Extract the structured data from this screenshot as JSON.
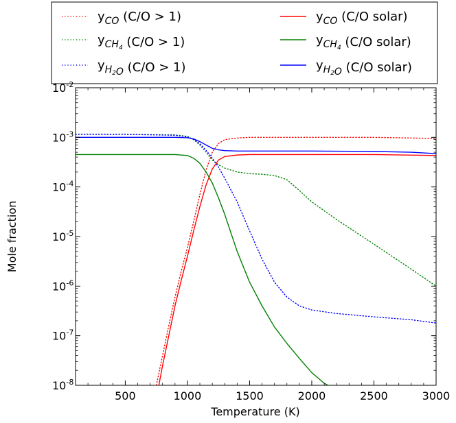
{
  "chart_data": {
    "type": "line",
    "xlabel": "Temperature (K)",
    "ylabel": "Mole fraction",
    "xlim": [
      100,
      3000
    ],
    "ylim": [
      1e-08,
      0.01
    ],
    "yscale": "log",
    "xticks": [
      500,
      1000,
      1500,
      2000,
      2500,
      3000
    ],
    "xtick_labels": [
      "500",
      "1000",
      "1500",
      "2000",
      "2500",
      "3000"
    ],
    "yticks": [
      {
        "value": 1e-08,
        "base": "10",
        "exp": "-8"
      },
      {
        "value": 1e-07,
        "base": "10",
        "exp": "-7"
      },
      {
        "value": 1e-06,
        "base": "10",
        "exp": "-6"
      },
      {
        "value": 1e-05,
        "base": "10",
        "exp": "-5"
      },
      {
        "value": 0.0001,
        "base": "10",
        "exp": "-4"
      },
      {
        "value": 0.001,
        "base": "10",
        "exp": "-3"
      },
      {
        "value": 0.01,
        "base": "10",
        "exp": "-2"
      }
    ],
    "legend_position": "top",
    "legend_symbol": "y",
    "series": [
      {
        "name": "yCO (C/O > 1)",
        "species": "CO",
        "case": "(C/O > 1)",
        "color": "#ff0000",
        "style": "dotted",
        "x": [
          750,
          800,
          850,
          900,
          950,
          1000,
          1050,
          1100,
          1150,
          1200,
          1250,
          1300,
          1400,
          1500,
          1700,
          2000,
          2500,
          3000
        ],
        "y": [
          1e-08,
          4e-08,
          1.6e-07,
          6e-07,
          2e-06,
          6e-06,
          2e-05,
          7e-05,
          0.00022,
          0.0005,
          0.00075,
          0.0009,
          0.00097,
          0.001,
          0.001,
          0.001,
          0.001,
          0.00095
        ]
      },
      {
        "name": "yCH4 (C/O > 1)",
        "species": "CH4",
        "case": "(C/O > 1)",
        "color": "#008000",
        "style": "dotted",
        "x": [
          100,
          500,
          900,
          1000,
          1050,
          1100,
          1150,
          1200,
          1250,
          1300,
          1400,
          1500,
          1600,
          1700,
          1800,
          1900,
          2000,
          2200,
          2500,
          2800,
          3000
        ],
        "y": [
          0.00115,
          0.00115,
          0.00112,
          0.00105,
          0.0009,
          0.0007,
          0.0005,
          0.00035,
          0.00028,
          0.00024,
          0.0002,
          0.000185,
          0.00018,
          0.00017,
          0.00014,
          8.5e-05,
          5e-05,
          2.2e-05,
          7e-06,
          2.2e-06,
          1e-06
        ]
      },
      {
        "name": "yH2O (C/O > 1)",
        "species": "H2O",
        "case": "(C/O > 1)",
        "color": "#0000ff",
        "style": "dotted",
        "x": [
          100,
          500,
          900,
          1000,
          1050,
          1100,
          1150,
          1200,
          1250,
          1300,
          1400,
          1500,
          1600,
          1700,
          1800,
          1900,
          2000,
          2200,
          2500,
          2800,
          3000
        ],
        "y": [
          0.00115,
          0.00115,
          0.0011,
          0.00102,
          0.0009,
          0.00075,
          0.00055,
          0.00038,
          0.00025,
          0.00015,
          5e-05,
          1.3e-05,
          3.5e-06,
          1.2e-06,
          6e-07,
          4e-07,
          3.3e-07,
          2.8e-07,
          2.4e-07,
          2.1e-07,
          1.8e-07
        ]
      },
      {
        "name": "yCO (C/O solar)",
        "species": "CO",
        "case": "(C/O solar)",
        "color": "#ff0000",
        "style": "solid",
        "x": [
          770,
          800,
          850,
          900,
          950,
          1000,
          1050,
          1100,
          1150,
          1200,
          1250,
          1300,
          1400,
          1500,
          2000,
          2500,
          3000
        ],
        "y": [
          1e-08,
          2.5e-08,
          1e-07,
          4e-07,
          1.3e-06,
          4e-06,
          1.3e-05,
          4e-05,
          0.00011,
          0.00023,
          0.00035,
          0.00041,
          0.00044,
          0.00045,
          0.00045,
          0.00045,
          0.00043
        ]
      },
      {
        "name": "yCH4 (C/O solar)",
        "species": "CH4",
        "case": "(C/O solar)",
        "color": "#008000",
        "style": "solid",
        "x": [
          100,
          500,
          900,
          1000,
          1050,
          1100,
          1150,
          1200,
          1250,
          1300,
          1400,
          1500,
          1600,
          1700,
          1800,
          1900,
          2000,
          2100,
          2130
        ],
        "y": [
          0.00045,
          0.00045,
          0.00045,
          0.00043,
          0.00038,
          0.0003,
          0.0002,
          0.00012,
          6e-05,
          2.8e-05,
          5e-06,
          1.2e-06,
          4e-07,
          1.5e-07,
          7e-08,
          3.5e-08,
          1.8e-08,
          1.1e-08,
          1e-08
        ]
      },
      {
        "name": "yH2O (C/O solar)",
        "species": "H2O",
        "case": "(C/O solar)",
        "color": "#0000ff",
        "style": "solid",
        "x": [
          100,
          500,
          900,
          1000,
          1050,
          1100,
          1150,
          1200,
          1250,
          1300,
          1400,
          1500,
          2000,
          2500,
          2800,
          3000
        ],
        "y": [
          0.001,
          0.001,
          0.001,
          0.00098,
          0.00093,
          0.00082,
          0.0007,
          0.0006,
          0.00056,
          0.00054,
          0.00053,
          0.00053,
          0.00053,
          0.00052,
          0.0005,
          0.00047
        ]
      }
    ]
  }
}
